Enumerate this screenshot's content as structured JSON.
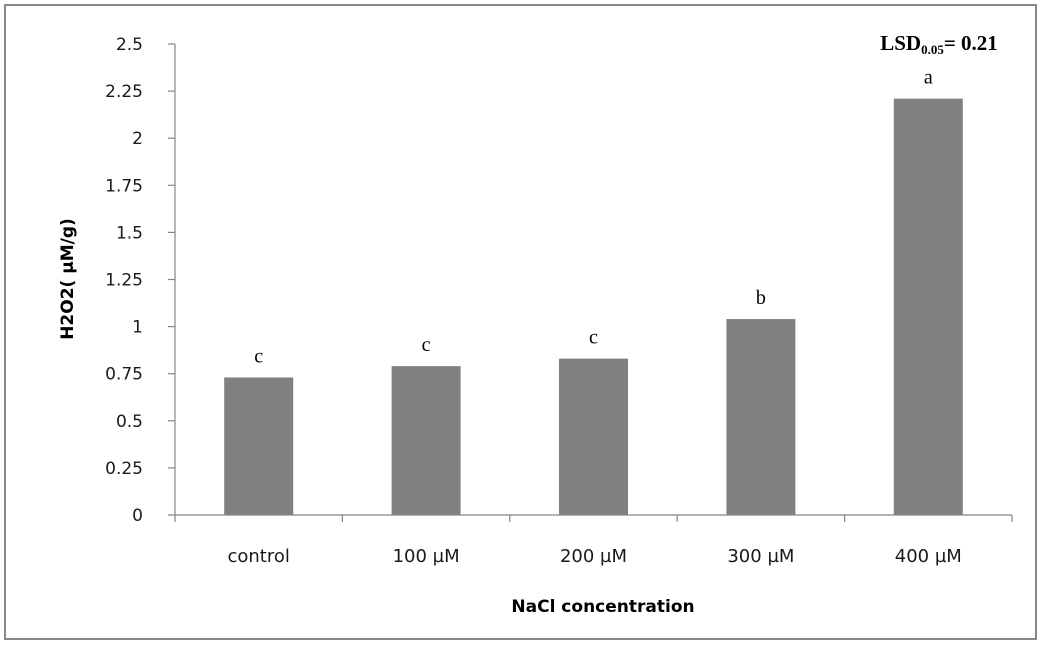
{
  "chart_data": {
    "type": "bar",
    "categories": [
      "control",
      "100 µM",
      "200 µM",
      "300 µM",
      "400 µM"
    ],
    "values": [
      0.73,
      0.79,
      0.83,
      1.04,
      2.21
    ],
    "significance_letters": [
      "c",
      "c",
      "c",
      "b",
      "a"
    ],
    "xlabel": "NaCl  concentration",
    "ylabel": "H2O2( µM/g)",
    "ylim": [
      0,
      2.5
    ],
    "yticks": [
      "0",
      "0.25",
      "0.5",
      "0.75",
      "1",
      "1.25",
      "1.5",
      "1.75",
      "2",
      "2.25",
      "2.5"
    ],
    "ytick_values": [
      0,
      0.25,
      0.5,
      0.75,
      1,
      1.25,
      1.5,
      1.75,
      2,
      2.25,
      2.5
    ],
    "annotation": {
      "main": "LSD",
      "subscript": "0.05",
      "rest": "= 0.21"
    },
    "bar_color": "#808080",
    "grid": false,
    "legend": "none"
  }
}
